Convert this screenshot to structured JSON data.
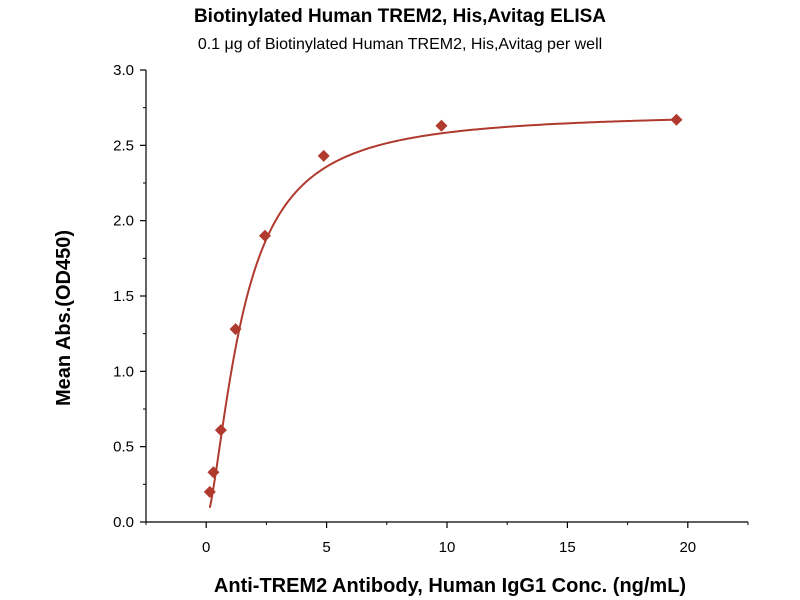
{
  "chart_data": {
    "type": "scatter",
    "title": "Biotinylated Human TREM2, His,Avitag ELISA",
    "subtitle": "0.1 μg of Biotinylated Human TREM2, His,Avitag per well",
    "xlabel": "Anti-TREM2 Antibody, Human IgG1 Conc. (ng/mL)",
    "ylabel": "Mean Abs.(OD450)",
    "xlim": [
      -2.5,
      22.5
    ],
    "ylim": [
      0,
      3.0
    ],
    "x_ticks": [
      "0",
      "5",
      "10",
      "15",
      "20"
    ],
    "y_ticks": [
      "0.0",
      "0.5",
      "1.0",
      "1.5",
      "2.0",
      "2.5",
      "3.0"
    ],
    "grid": false,
    "series": [
      {
        "points": [
          {
            "x": 0.15,
            "y": 0.2
          },
          {
            "x": 0.3,
            "y": 0.33
          },
          {
            "x": 0.61,
            "y": 0.61
          },
          {
            "x": 1.22,
            "y": 1.28
          },
          {
            "x": 2.44,
            "y": 1.9
          },
          {
            "x": 4.88,
            "y": 2.43
          },
          {
            "x": 9.77,
            "y": 2.63
          },
          {
            "x": 19.53,
            "y": 2.67
          }
        ],
        "fit": "4PL",
        "color": "#b03a2e"
      }
    ]
  }
}
